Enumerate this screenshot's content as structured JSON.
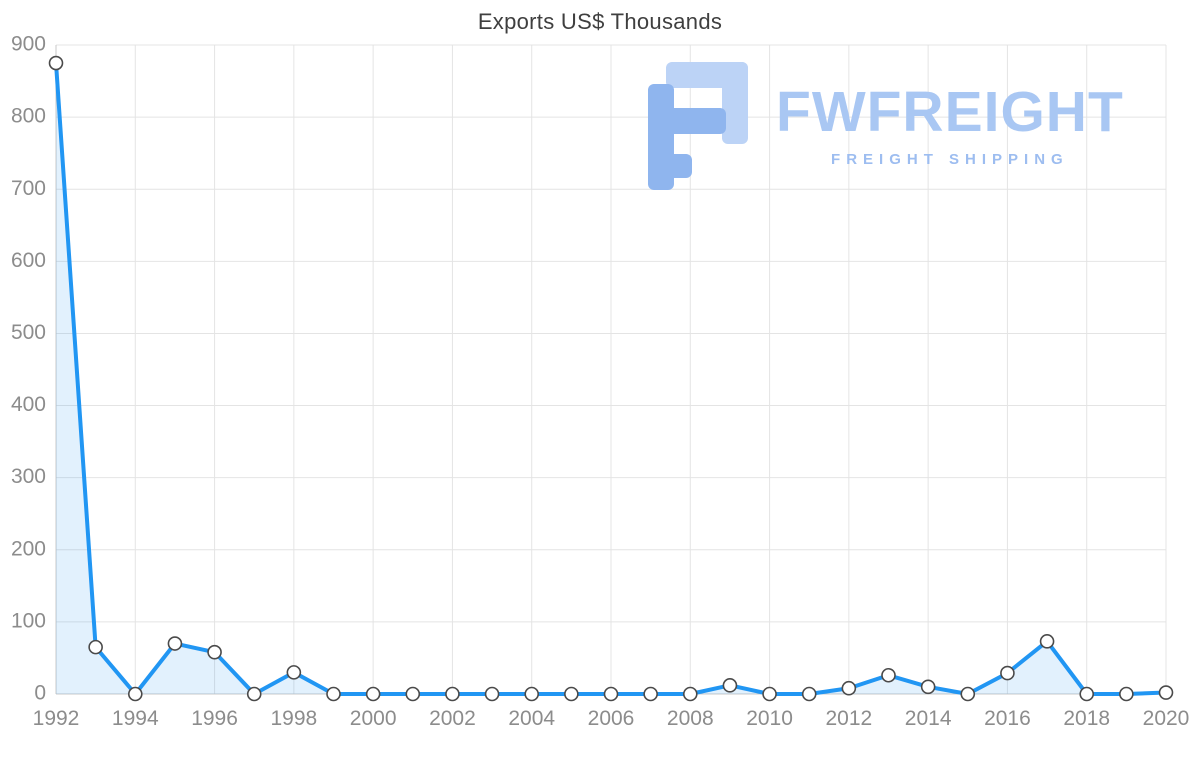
{
  "title": "Exports US$ Thousands",
  "watermark": {
    "brand": "FWFREIGHT",
    "tagline": "FREIGHT SHIPPING"
  },
  "colors": {
    "line": "#2196f3",
    "fill_opacity": "0.13",
    "grid": "#e4e4e4",
    "axis": "#c8c8c8",
    "tick": "#8c8c8c",
    "marker_stroke": "#4a4a4a",
    "title": "#3f3f3f",
    "watermark_brand": "#a9c7f3",
    "watermark_tagline": "#9dbdf0",
    "logo_dark": "#8fb5ee",
    "logo_light": "#bcd3f6"
  },
  "chart_data": {
    "type": "area",
    "title": "Exports US$ Thousands",
    "xlabel": "",
    "ylabel": "",
    "ylim": [
      0,
      900
    ],
    "grid": true,
    "legend": "none",
    "x": [
      1992,
      1993,
      1994,
      1995,
      1996,
      1997,
      1998,
      1999,
      2000,
      2001,
      2002,
      2003,
      2004,
      2005,
      2006,
      2007,
      2008,
      2009,
      2010,
      2011,
      2012,
      2013,
      2014,
      2015,
      2016,
      2017,
      2018,
      2019,
      2020
    ],
    "values": [
      875,
      65,
      0,
      70,
      58,
      0,
      30,
      0,
      0,
      0,
      0,
      0,
      0,
      0,
      0,
      0,
      0,
      12,
      0,
      0,
      8,
      26,
      10,
      0,
      29,
      73,
      0,
      0,
      2
    ],
    "y_ticks": [
      0,
      100,
      200,
      300,
      400,
      500,
      600,
      700,
      800,
      900
    ],
    "x_ticks": [
      1992,
      1994,
      1996,
      1998,
      2000,
      2002,
      2004,
      2006,
      2008,
      2010,
      2012,
      2014,
      2016,
      2018,
      2020
    ]
  }
}
